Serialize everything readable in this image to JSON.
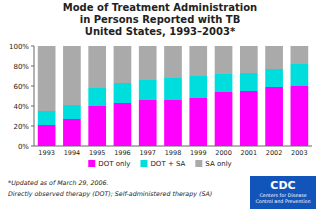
{
  "chart_data": {
    "type": "bar",
    "stacked": true,
    "title": "Mode of Treatment Administration\nin Persons Reported with TB\nUnited States, 1993–2003*",
    "categories": [
      "1993",
      "1994",
      "1995",
      "1996",
      "1997",
      "1998",
      "1999",
      "2000",
      "2001",
      "2002",
      "2003"
    ],
    "series": [
      {
        "name": "DOT only",
        "color": "#FF00FF",
        "values": [
          21,
          27,
          40,
          43,
          46,
          46,
          48,
          54,
          55,
          59,
          60
        ]
      },
      {
        "name": "DOT + SA",
        "color": "#00DDDD",
        "values": [
          14,
          14,
          18,
          20,
          20,
          22,
          22,
          18,
          18,
          18,
          22
        ]
      },
      {
        "name": "SA only",
        "color": "#AAAAAA",
        "values": [
          65,
          59,
          42,
          37,
          34,
          32,
          30,
          28,
          27,
          23,
          18
        ]
      }
    ],
    "ylim": [
      0,
      100
    ],
    "yticks": [
      {
        "value": 0,
        "label": "0%"
      },
      {
        "value": 20,
        "label": "20%"
      },
      {
        "value": 40,
        "label": "40%"
      },
      {
        "value": 60,
        "label": "60%"
      },
      {
        "value": 80,
        "label": "80%"
      },
      {
        "value": 100,
        "label": "100%"
      }
    ],
    "grid": false,
    "legend": "bottom",
    "annotations": [
      "*Updated as of March 29, 2006.",
      "Directly observed therapy (DOT); Self-administered therapy (SA)",
      "CDC",
      "Centers for Disease\nControl and Prevention"
    ]
  }
}
